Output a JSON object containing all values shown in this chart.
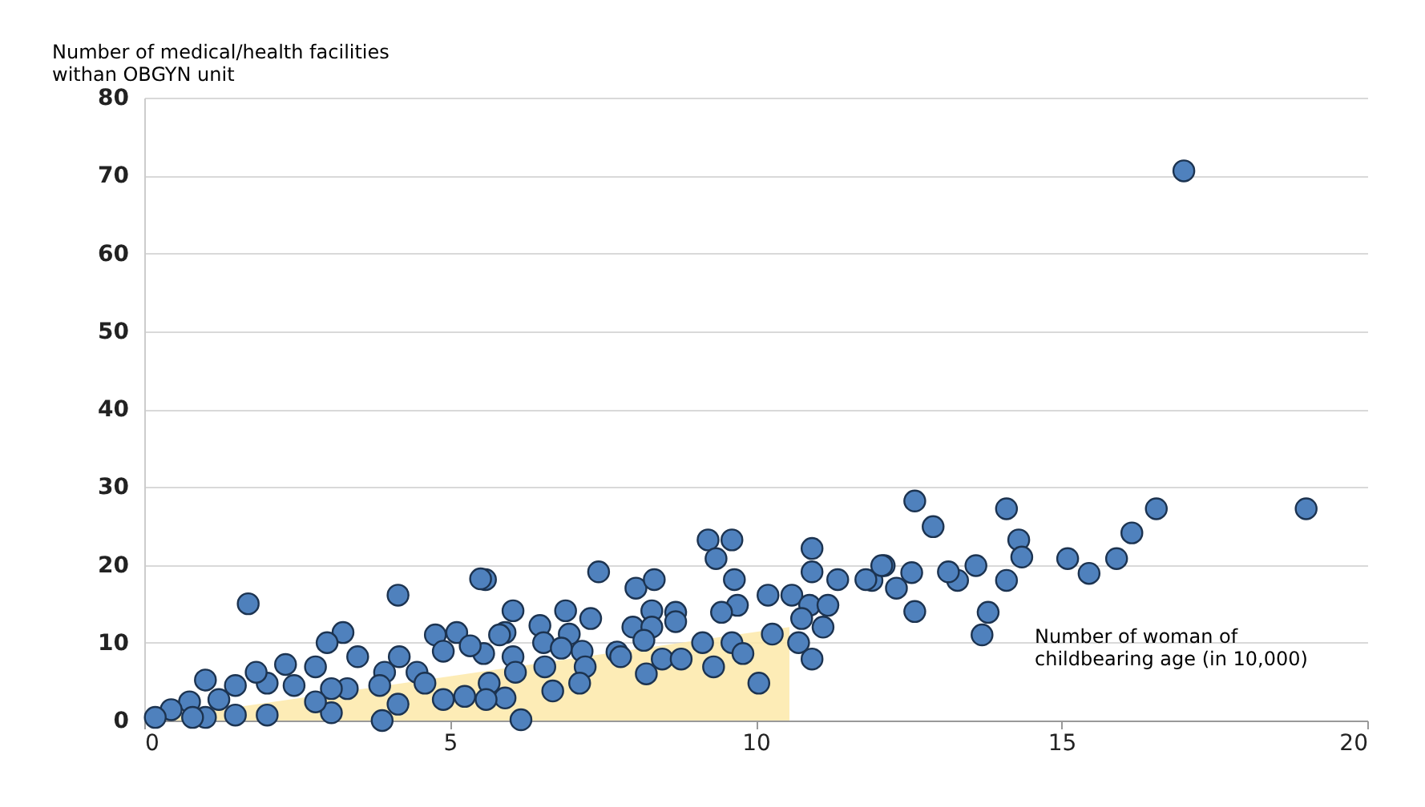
{
  "chart_data": {
    "type": "scatter",
    "xlabel": "Number of woman of\nchildbearing age (in 10,000)",
    "ylabel": "Number of medical/health facilities\n withan OBGYN unit",
    "xlim": [
      0,
      20
    ],
    "xticks": [
      0,
      5,
      10,
      15,
      20
    ],
    "ylim": [
      0,
      80
    ],
    "yticks": [
      0,
      10,
      20,
      30,
      40,
      50,
      60,
      70,
      80
    ],
    "grid": "y",
    "series": [
      {
        "type": "area",
        "color": "#fde9a9",
        "x": [
          0,
          10.55
        ],
        "values": [
          0,
          12
        ]
      },
      {
        "marker": "circle",
        "color": "#4f81bd",
        "x": [
          17.0,
          12.6,
          12.9,
          14.1,
          14.3,
          14.35,
          14.1,
          13.8,
          13.7,
          13.6,
          13.3,
          13.15,
          12.6,
          12.55,
          12.3,
          12.1,
          11.9,
          15.1,
          15.45,
          15.9,
          16.15,
          16.55,
          19.0,
          9.22,
          9.61,
          9.35,
          10.92,
          9.65,
          10.92,
          11.34,
          11.8,
          12.06,
          10.2,
          10.59,
          10.88,
          11.18,
          10.75,
          11.1,
          10.7,
          10.92,
          9.7,
          9.44,
          7.43,
          8.04,
          8.34,
          8.3,
          8.69,
          8.69,
          7.99,
          8.3,
          8.17,
          7.73,
          5.58,
          6.03,
          6.89,
          7.3,
          5.9,
          6.47,
          6.53,
          6.95,
          6.82,
          7.16,
          6.03,
          5.55,
          10.27,
          9.61,
          9.13,
          9.79,
          9.31,
          10.05,
          8.47,
          8.78,
          8.21,
          7.79,
          7.21,
          7.12,
          6.68,
          6.55,
          6.16,
          5.9,
          5.64,
          6.07,
          1.7,
          4.15,
          5.5,
          3.25,
          2.99,
          3.49,
          4.17,
          2.8,
          2.31,
          4.76,
          5.11,
          4.89,
          5.33,
          5.81,
          4.46,
          3.93,
          3.32,
          3.06,
          2.45,
          2.01,
          1.83,
          1.0,
          1.22,
          0.74,
          0.44,
          0.18,
          1.0,
          1.49,
          3.06,
          3.89,
          4.15,
          4.89,
          5.24,
          4.59,
          3.85,
          2.8,
          2.01,
          1.49,
          5.59,
          0.79
        ],
        "values": [
          70.6,
          28.2,
          24.9,
          27.2,
          23.2,
          21.0,
          18.0,
          13.9,
          11.0,
          19.9,
          18.0,
          19.1,
          14.0,
          19.0,
          17.0,
          19.9,
          18.0,
          20.8,
          18.9,
          20.8,
          24.1,
          27.2,
          27.2,
          23.2,
          23.2,
          20.8,
          22.1,
          18.1,
          19.1,
          18.1,
          18.1,
          19.9,
          16.1,
          16.1,
          14.8,
          14.8,
          13.1,
          12.0,
          10.0,
          7.9,
          14.8,
          13.9,
          19.1,
          17.0,
          18.1,
          14.1,
          13.9,
          12.7,
          12.0,
          12.0,
          10.3,
          8.8,
          18.1,
          14.1,
          14.1,
          13.1,
          11.3,
          12.2,
          10.0,
          11.1,
          9.3,
          8.9,
          8.2,
          8.6,
          11.1,
          10.0,
          10.0,
          8.6,
          6.9,
          4.8,
          7.9,
          7.9,
          6.0,
          8.2,
          6.9,
          4.8,
          3.8,
          6.9,
          0.1,
          2.9,
          4.8,
          6.2,
          15.0,
          16.1,
          18.2,
          11.3,
          10.0,
          8.2,
          8.2,
          6.9,
          7.2,
          11.0,
          11.3,
          8.9,
          9.6,
          11.0,
          6.2,
          6.2,
          4.1,
          4.1,
          4.5,
          4.8,
          6.2,
          5.2,
          2.7,
          2.4,
          1.4,
          0.4,
          0.4,
          4.5,
          1.0,
          0.0,
          2.1,
          2.7,
          3.1,
          4.8,
          4.5,
          2.4,
          0.7,
          0.7,
          2.7,
          0.4
        ]
      }
    ]
  }
}
